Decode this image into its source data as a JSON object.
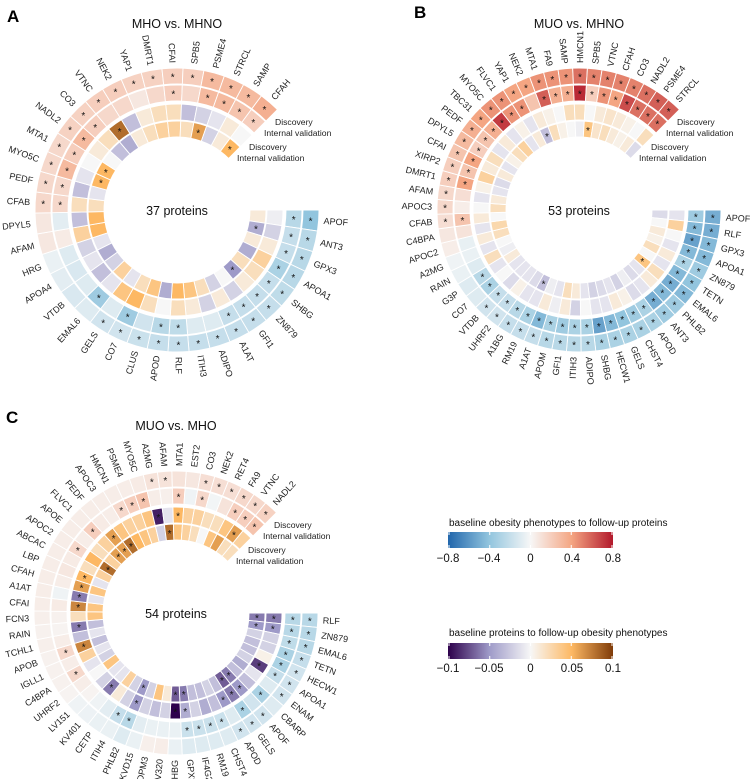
{
  "colors": {
    "rdbu": [
      "#2166ac",
      "#92c5de",
      "#f7f7f7",
      "#f4a582",
      "#b2182b"
    ],
    "puor": [
      "#2d004b",
      "#9e9ac8",
      "#f7f7f7",
      "#fdb863",
      "#7f3b08"
    ]
  },
  "legend": {
    "top": {
      "title": "baseline obesity phenotypes to follow-up proteins",
      "ticks": [
        "−0.8",
        "−0.4",
        "0",
        "0.4",
        "0.8"
      ],
      "range": [
        -0.8,
        0.8
      ]
    },
    "bottom": {
      "title": "baseline proteins to follow-up obesity phenotypes",
      "ticks": [
        "−0.1",
        "−0.05",
        "0",
        "0.05",
        "0.1"
      ],
      "range": [
        -0.1,
        0.1
      ]
    }
  },
  "ring_labels": {
    "discovery": "Discovery",
    "validation": "Internal validation"
  },
  "chart_data": [
    {
      "type": "heatmap",
      "panel": "A",
      "title": "MHO vs. MHNO",
      "count_label": "37 proteins",
      "columns": [
        "protein",
        "discovery_pheno_to_protein",
        "validation_pheno_to_protein",
        "discovery_protein_to_pheno",
        "validation_protein_to_pheno",
        "significance"
      ],
      "rows": [
        [
          "APOF",
          -0.4,
          -0.25,
          -0.005,
          0.01,
          "1100"
        ],
        [
          "ANT3",
          -0.25,
          -0.2,
          -0.02,
          -0.04,
          "1101"
        ],
        [
          "GPX3",
          -0.25,
          -0.2,
          0.01,
          0.01,
          "1100"
        ],
        [
          "APOA1",
          -0.25,
          -0.3,
          0.03,
          -0.04,
          "1100"
        ],
        [
          "SHBG",
          -0.22,
          -0.2,
          0.02,
          0.02,
          "1100"
        ],
        [
          "ZN879",
          -0.2,
          -0.2,
          0.01,
          -0.05,
          "1101"
        ],
        [
          "GFI1",
          -0.2,
          -0.2,
          -0.02,
          0.0,
          "1100"
        ],
        [
          "A1AT",
          -0.2,
          -0.2,
          0.01,
          -0.02,
          "1100"
        ],
        [
          "ADIPO",
          -0.2,
          -0.1,
          -0.02,
          0.02,
          "1000"
        ],
        [
          "ITIH3",
          -0.2,
          -0.1,
          0.01,
          0.04,
          "1000"
        ],
        [
          "RLF",
          -0.2,
          -0.22,
          0.02,
          0.05,
          "1100"
        ],
        [
          "APOD",
          -0.2,
          -0.25,
          0.0,
          -0.04,
          "1100"
        ],
        [
          "CLUS",
          -0.18,
          -0.15,
          0.02,
          0.04,
          "1000"
        ],
        [
          "CO7",
          -0.15,
          -0.35,
          0.05,
          0.02,
          "1100"
        ],
        [
          "GELS",
          -0.15,
          -0.1,
          0.04,
          -0.01,
          "1000"
        ],
        [
          "EMAL6",
          -0.1,
          -0.35,
          -0.01,
          0.03,
          "0100"
        ],
        [
          "VTDB",
          -0.12,
          -0.1,
          -0.03,
          -0.02,
          "0000"
        ],
        [
          "APOA4",
          -0.08,
          -0.12,
          -0.01,
          -0.04,
          "0000"
        ],
        [
          "HRG",
          -0.05,
          -0.1,
          -0.02,
          -0.01,
          "0000"
        ],
        [
          "AFAM",
          0.08,
          0.06,
          0.03,
          0.05,
          "0000"
        ],
        [
          "DPYL5",
          0.08,
          -0.08,
          -0.03,
          0.05,
          "0000"
        ],
        [
          "CFAB",
          0.15,
          0.15,
          0.02,
          0.02,
          "1100"
        ],
        [
          "PEDF",
          0.15,
          0.15,
          -0.03,
          -0.01,
          "1100"
        ],
        [
          "MYO5C",
          0.15,
          0.3,
          -0.01,
          0.05,
          "1101"
        ],
        [
          "MTA1",
          0.15,
          0.2,
          0.0,
          0.05,
          "1101"
        ],
        [
          "NADL2",
          0.18,
          0.3,
          0.01,
          0.0,
          "1100"
        ],
        [
          "CO3",
          0.18,
          0.2,
          0.02,
          -0.03,
          "1100"
        ],
        [
          "VTNC",
          0.2,
          0.15,
          0.08,
          -0.04,
          "1010"
        ],
        [
          "NEK2",
          0.2,
          0.15,
          -0.03,
          0.01,
          "1000"
        ],
        [
          "YAP1",
          0.18,
          0.08,
          0.01,
          0.02,
          "1000"
        ],
        [
          "DMRT1",
          0.18,
          0.15,
          0.02,
          0.03,
          "1000"
        ],
        [
          "CFAI",
          0.2,
          0.2,
          0.02,
          0.03,
          "1100"
        ],
        [
          "SPB5",
          0.2,
          0.15,
          -0.03,
          0.02,
          "1000"
        ],
        [
          "PSME4",
          0.3,
          0.3,
          -0.02,
          0.06,
          "1101"
        ],
        [
          "STRCL",
          0.3,
          0.3,
          -0.01,
          -0.02,
          "1100"
        ],
        [
          "SAMP",
          0.3,
          0.25,
          0.01,
          0.01,
          "1100"
        ],
        [
          "CFAH",
          0.35,
          0.2,
          0.0,
          0.05,
          "1101"
        ]
      ]
    },
    {
      "type": "heatmap",
      "panel": "B",
      "title": "MUO vs. MHNO",
      "count_label": "53 proteins",
      "columns": [
        "protein",
        "discovery_pheno_to_protein",
        "validation_pheno_to_protein",
        "discovery_protein_to_pheno",
        "validation_protein_to_pheno",
        "significance"
      ],
      "rows": [
        [
          "APOF",
          -0.5,
          -0.35,
          -0.01,
          -0.015,
          "1100"
        ],
        [
          "RLF",
          -0.5,
          -0.45,
          0.03,
          0.0,
          "1100"
        ],
        [
          "GPX3",
          -0.45,
          -0.55,
          0.0,
          0.01,
          "1100"
        ],
        [
          "APOA1",
          -0.45,
          -0.45,
          -0.01,
          0.005,
          "1100"
        ],
        [
          "ZN879",
          -0.35,
          -0.3,
          0.01,
          0.02,
          "1100"
        ],
        [
          "TETN",
          -0.4,
          -0.45,
          -0.01,
          0.0,
          "1100"
        ],
        [
          "EMAL6",
          -0.45,
          -0.5,
          0.02,
          0.04,
          "1101"
        ],
        [
          "PHLB2",
          -0.35,
          -0.45,
          0.01,
          -0.01,
          "1100"
        ],
        [
          "ANT3",
          -0.35,
          -0.5,
          -0.01,
          -0.015,
          "1100"
        ],
        [
          "APOD",
          -0.3,
          -0.3,
          -0.015,
          -0.005,
          "1100"
        ],
        [
          "CHST4",
          -0.3,
          -0.35,
          0.005,
          -0.02,
          "1100"
        ],
        [
          "GELS",
          -0.3,
          -0.4,
          0.01,
          -0.01,
          "1100"
        ],
        [
          "HECW1",
          -0.3,
          -0.45,
          -0.01,
          -0.015,
          "1100"
        ],
        [
          "SHBG",
          -0.3,
          -0.55,
          -0.01,
          -0.02,
          "1100"
        ],
        [
          "ADIPO",
          -0.25,
          -0.3,
          0.0,
          -0.01,
          "1100"
        ],
        [
          "ITIH3",
          -0.25,
          -0.3,
          -0.02,
          0.01,
          "1100"
        ],
        [
          "GFI1",
          -0.25,
          -0.35,
          0.01,
          0.02,
          "1100"
        ],
        [
          "APOM",
          -0.25,
          -0.3,
          -0.005,
          -0.01,
          "1100"
        ],
        [
          "A1AT",
          -0.2,
          -0.45,
          0.01,
          -0.005,
          "1100"
        ],
        [
          "RM19",
          -0.2,
          -0.3,
          -0.01,
          -0.03,
          "1101"
        ],
        [
          "A1BG",
          -0.2,
          -0.25,
          -0.01,
          -0.015,
          "1100"
        ],
        [
          "UHRF2",
          -0.15,
          -0.2,
          0.005,
          -0.01,
          "1100"
        ],
        [
          "VTDB",
          -0.15,
          -0.2,
          -0.015,
          -0.01,
          "1100"
        ],
        [
          "CO7",
          -0.1,
          -0.3,
          0.0,
          -0.01,
          "0100"
        ],
        [
          "G3P",
          -0.1,
          -0.25,
          -0.01,
          0.01,
          "0100"
        ],
        [
          "RAIN",
          -0.05,
          -0.1,
          0.02,
          -0.005,
          "0000"
        ],
        [
          "A2MG",
          -0.03,
          -0.05,
          -0.01,
          0.0,
          "0000"
        ],
        [
          "APOC2",
          0.05,
          -0.06,
          0.01,
          0.02,
          "0000"
        ],
        [
          "C4BPA",
          0.08,
          0.1,
          -0.01,
          0.025,
          "0000"
        ],
        [
          "CFAB",
          0.12,
          0.25,
          0.01,
          0.0,
          "1100"
        ],
        [
          "APOC3",
          0.15,
          0.05,
          0.0,
          0.02,
          "1000"
        ],
        [
          "AFAM",
          0.15,
          0.12,
          -0.01,
          0.01,
          "1000"
        ],
        [
          "DMRT1",
          0.2,
          0.4,
          0.005,
          -0.01,
          "1100"
        ],
        [
          "XIRP2",
          0.2,
          0.25,
          0.03,
          -0.015,
          "1100"
        ],
        [
          "CFAI",
          0.25,
          0.4,
          0.01,
          0.01,
          "1100"
        ],
        [
          "DPYL5",
          0.3,
          0.2,
          0.02,
          -0.01,
          "1100"
        ],
        [
          "PEDF",
          0.35,
          0.25,
          -0.01,
          0.005,
          "1100"
        ],
        [
          "TBC31",
          0.4,
          0.35,
          0.01,
          0.02,
          "1100"
        ],
        [
          "MYO5C",
          0.45,
          0.7,
          -0.01,
          0.03,
          "1100"
        ],
        [
          "FLVC1",
          0.45,
          0.45,
          0.005,
          -0.01,
          "1100"
        ],
        [
          "YAP1",
          0.4,
          0.45,
          -0.01,
          0.01,
          "1100"
        ],
        [
          "NEK2",
          0.4,
          0.25,
          0.01,
          -0.03,
          "1001"
        ],
        [
          "MTA1",
          0.45,
          0.6,
          0.005,
          0.02,
          "1100"
        ],
        [
          "FA9",
          0.45,
          0.35,
          0.0,
          0.005,
          "1100"
        ],
        [
          "SAMP",
          0.45,
          0.35,
          0.02,
          0.0,
          "1100"
        ],
        [
          "HMCN1",
          0.55,
          0.75,
          0.02,
          -0.005,
          "1100"
        ],
        [
          "SPB5",
          0.5,
          0.2,
          0.0,
          0.04,
          "1101"
        ],
        [
          "VTNC",
          0.5,
          0.45,
          0.01,
          0.015,
          "1100"
        ],
        [
          "CFAH",
          0.5,
          0.4,
          0.015,
          0.02,
          "1100"
        ],
        [
          "CO3",
          0.5,
          0.65,
          0.01,
          0.01,
          "1100"
        ],
        [
          "NADL2",
          0.55,
          0.55,
          0.005,
          0.005,
          "1100"
        ],
        [
          "PSME4",
          0.6,
          0.55,
          0.0,
          0.01,
          "1100"
        ],
        [
          "STRCL",
          0.6,
          0.55,
          0.02,
          -0.015,
          "1100"
        ]
      ]
    },
    {
      "type": "heatmap",
      "panel": "C",
      "title": "MUO vs. MHO",
      "count_label": "54 proteins",
      "columns": [
        "protein",
        "discovery_pheno_to_protein",
        "validation_pheno_to_protein",
        "discovery_protein_to_pheno",
        "validation_protein_to_pheno",
        "significance"
      ],
      "rows": [
        [
          "RLF",
          -0.25,
          -0.25,
          -0.06,
          -0.06,
          "1111"
        ],
        [
          "ZN879",
          -0.25,
          -0.25,
          -0.05,
          -0.05,
          "1111"
        ],
        [
          "EMAL6",
          -0.25,
          -0.22,
          -0.02,
          -0.02,
          "1100"
        ],
        [
          "TETN",
          -0.2,
          -0.3,
          -0.02,
          -0.03,
          "1100"
        ],
        [
          "HECW1",
          -0.15,
          -0.3,
          0.005,
          -0.03,
          "1100"
        ],
        [
          "APOA1",
          -0.15,
          -0.2,
          -0.08,
          -0.02,
          "1110"
        ],
        [
          "ENAM",
          -0.15,
          -0.1,
          -0.01,
          -0.04,
          "1000"
        ],
        [
          "CBARP",
          -0.1,
          -0.3,
          -0.03,
          -0.03,
          "0100"
        ],
        [
          "APOF",
          -0.15,
          -0.15,
          -0.05,
          -0.06,
          "1011"
        ],
        [
          "GELS",
          -0.15,
          -0.3,
          -0.06,
          -0.07,
          "1111"
        ],
        [
          "APOD",
          -0.15,
          -0.1,
          -0.05,
          -0.03,
          "1010"
        ],
        [
          "CHST4",
          -0.1,
          -0.18,
          -0.03,
          -0.02,
          "0100"
        ],
        [
          "RM19",
          -0.1,
          -0.18,
          -0.04,
          -0.03,
          "0100"
        ],
        [
          "IF4G2",
          -0.1,
          -0.18,
          -0.02,
          -0.03,
          "0100"
        ],
        [
          "GPX3",
          -0.1,
          -0.18,
          -0.04,
          -0.06,
          "0111"
        ],
        [
          "SHBG",
          -0.05,
          -0.05,
          -0.1,
          -0.07,
          "0011"
        ],
        [
          "KV320",
          0.05,
          -0.05,
          -0.02,
          0.01,
          "0000"
        ],
        [
          "DPM3",
          0.04,
          -0.05,
          -0.03,
          0.04,
          "0000"
        ],
        [
          "KVD15",
          -0.05,
          -0.08,
          -0.02,
          -0.02,
          "0000"
        ],
        [
          "PHLB2",
          -0.1,
          -0.25,
          -0.05,
          -0.05,
          "0111"
        ],
        [
          "ITIH4",
          -0.05,
          -0.2,
          -0.02,
          -0.02,
          "0100"
        ],
        [
          "CETP",
          -0.05,
          -0.08,
          0.01,
          0.03,
          "0000"
        ],
        [
          "KV401",
          -0.04,
          -0.03,
          -0.06,
          -0.01,
          "0010"
        ],
        [
          "LV151",
          -0.03,
          0.02,
          -0.02,
          -0.01,
          "0000"
        ],
        [
          "UHRF2",
          0.02,
          0.05,
          0.0,
          0.04,
          "0000"
        ],
        [
          "C4BPA",
          0.03,
          0.15,
          -0.01,
          -0.02,
          "0100"
        ],
        [
          "IGLL1",
          0.03,
          0.05,
          0.03,
          -0.01,
          "0000"
        ],
        [
          "APOB",
          0.03,
          0.15,
          0.07,
          -0.03,
          "0110"
        ],
        [
          "TCHL1",
          0.04,
          0.05,
          -0.03,
          -0.01,
          "0000"
        ],
        [
          "RAIN",
          0.03,
          0.02,
          -0.06,
          -0.03,
          "0010"
        ],
        [
          "FCN3",
          0.04,
          0.03,
          0.02,
          0.04,
          "0000"
        ],
        [
          "CFAI",
          0.05,
          0.06,
          0.07,
          0.04,
          "0010"
        ],
        [
          "A1AT",
          0.05,
          -0.03,
          -0.06,
          -0.01,
          "0010"
        ],
        [
          "CFAH",
          0.05,
          0.05,
          0.06,
          0.04,
          "0010"
        ],
        [
          "LBP",
          0.05,
          0.08,
          0.05,
          -0.01,
          "0010"
        ],
        [
          "ABCAC",
          0.05,
          0.06,
          0.02,
          0.03,
          "0000"
        ],
        [
          "APOC2",
          0.05,
          0.15,
          0.05,
          0.08,
          "0101"
        ],
        [
          "APOE",
          0.05,
          0.05,
          0.02,
          0.03,
          "0000"
        ],
        [
          "FLVC1",
          0.05,
          0.2,
          0.03,
          0.06,
          "0101"
        ],
        [
          "PEDF",
          0.05,
          0.06,
          0.06,
          0.06,
          "0011"
        ],
        [
          "APOC3",
          0.05,
          0.05,
          0.04,
          0.08,
          "0001"
        ],
        [
          "HMCN1",
          0.05,
          0.15,
          0.03,
          0.05,
          "0100"
        ],
        [
          "PSME4",
          0.05,
          0.2,
          0.03,
          0.04,
          "0100"
        ],
        [
          "MYO5C",
          0.06,
          0.25,
          0.04,
          0.03,
          "0100"
        ],
        [
          "A2MG",
          0.1,
          0.05,
          -0.09,
          -0.02,
          "1010"
        ],
        [
          "AFAM",
          0.1,
          0.04,
          -0.01,
          0.08,
          "1001"
        ],
        [
          "MTA1",
          0.1,
          0.2,
          0.05,
          0.04,
          "0110"
        ],
        [
          "EST2",
          0.08,
          -0.03,
          0.03,
          0.03,
          "0000"
        ],
        [
          "CO3",
          0.12,
          0.15,
          0.03,
          0.02,
          "1100"
        ],
        [
          "NEK2",
          0.12,
          -0.02,
          0.02,
          0.0,
          "1000"
        ],
        [
          "RET4",
          0.12,
          0.1,
          0.02,
          0.04,
          "1000"
        ],
        [
          "FA9",
          0.15,
          0.2,
          0.04,
          0.06,
          "1100"
        ],
        [
          "VTNC",
          0.15,
          0.2,
          0.06,
          0.02,
          "1110"
        ],
        [
          "NADL2",
          0.18,
          0.25,
          0.03,
          0.02,
          "1100"
        ]
      ]
    }
  ],
  "panels": {
    "A": {
      "letter": "A",
      "title": "MHO vs. MHNO",
      "count": "37 proteins"
    },
    "B": {
      "letter": "B",
      "title": "MUO vs. MHNO",
      "count": "53 proteins"
    },
    "C": {
      "letter": "C",
      "title": "MUO vs. MHO",
      "count": "54 proteins"
    }
  }
}
